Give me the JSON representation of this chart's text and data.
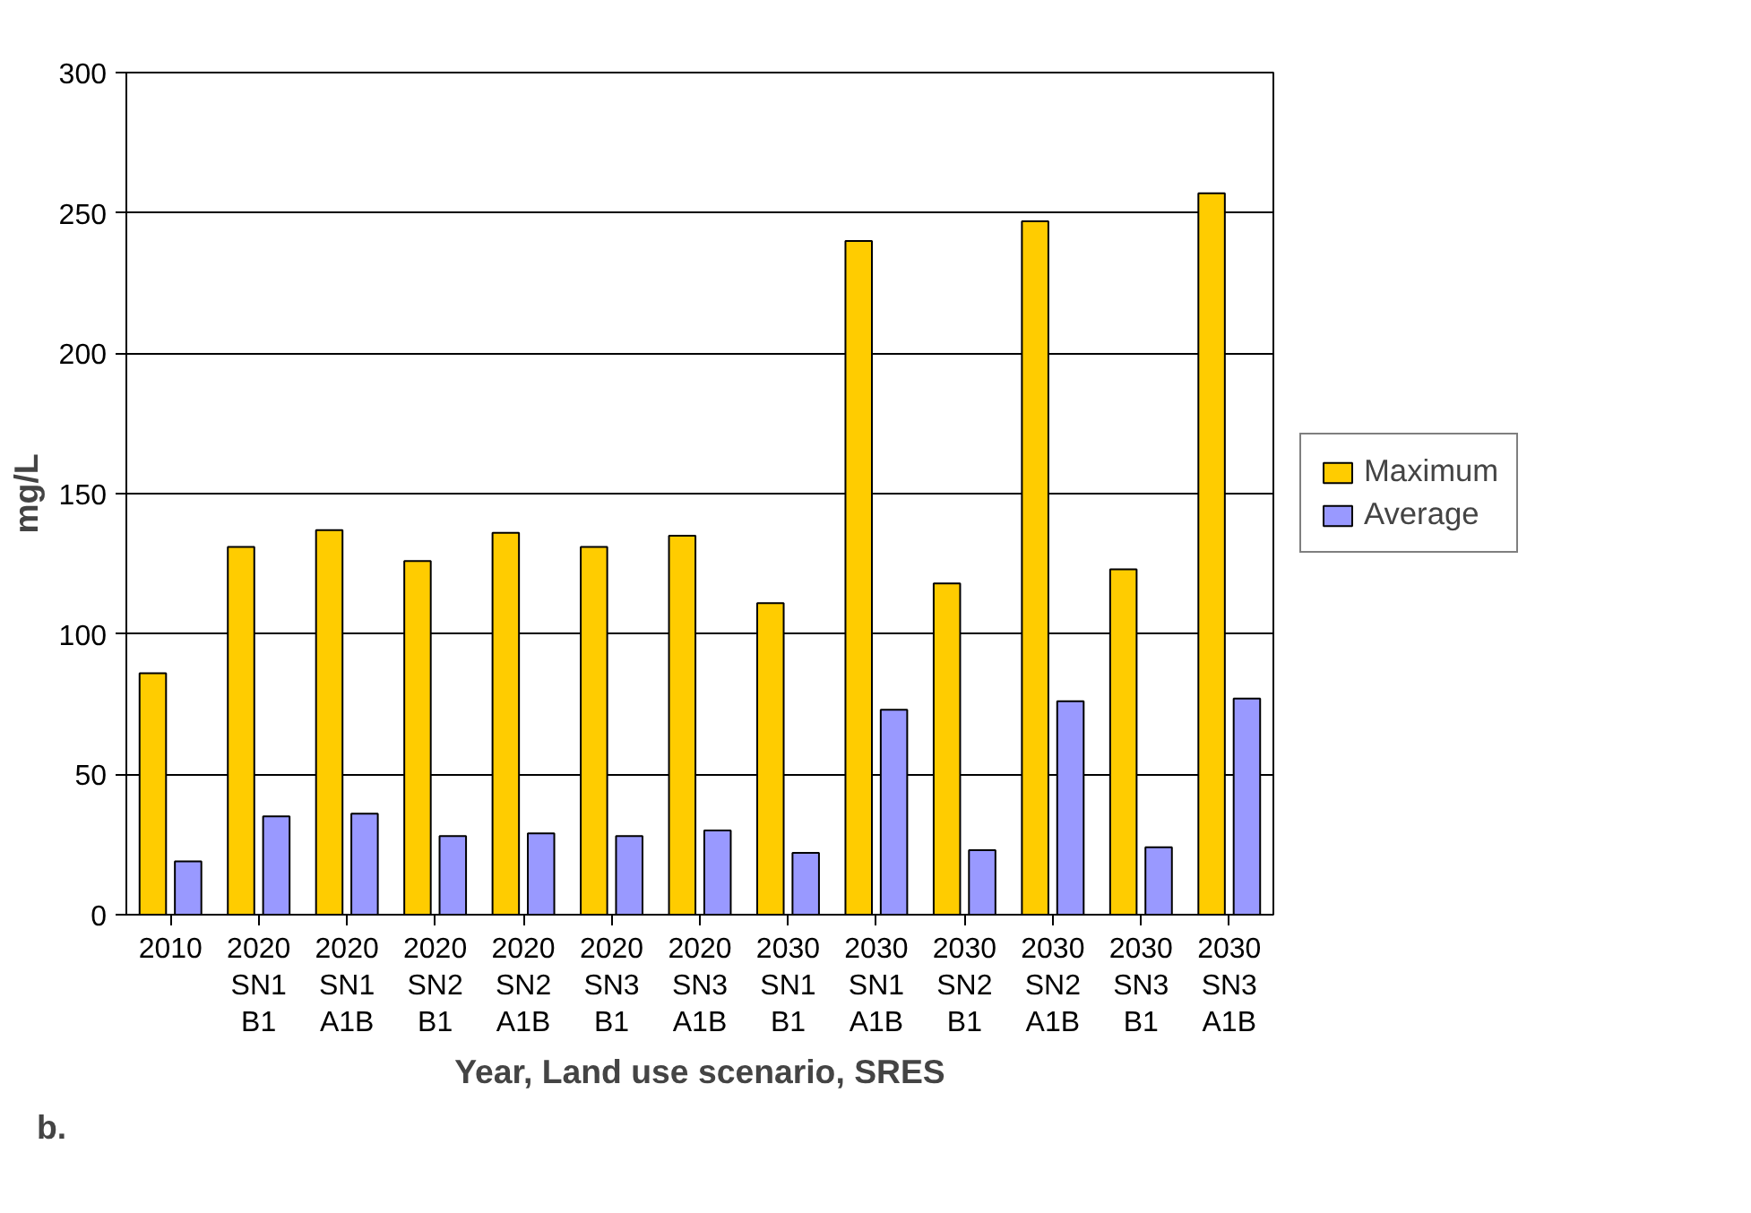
{
  "chart_data": {
    "type": "bar",
    "xlabel": "Year, Land use scenario, SRES",
    "ylabel": "mg/L",
    "categories": [
      "2010",
      "2020\nSN1\nB1",
      "2020\nSN1\nA1B",
      "2020\nSN2\nB1",
      "2020\nSN2\nA1B",
      "2020\nSN3\nB1",
      "2020\nSN3\nA1B",
      "2030\nSN1\nB1",
      "2030\nSN1\nA1B",
      "2030\nSN2\nB1",
      "2030\nSN2\nA1B",
      "2030\nSN3\nB1",
      "2030\nSN3\nA1B"
    ],
    "series": [
      {
        "name": "Maximum",
        "color": "#ffcc00",
        "values": [
          86,
          131,
          137,
          126,
          136,
          131,
          135,
          111,
          240,
          118,
          247,
          123,
          257
        ]
      },
      {
        "name": "Average",
        "color": "#9999ff",
        "values": [
          19,
          35,
          36,
          28,
          29,
          28,
          30,
          22,
          73,
          23,
          76,
          24,
          77
        ]
      }
    ],
    "ylim": [
      0,
      300
    ],
    "yticks": [
      0,
      50,
      100,
      150,
      200,
      250,
      300
    ],
    "grid": "y",
    "legend": "right",
    "annotations": [
      "b."
    ]
  }
}
